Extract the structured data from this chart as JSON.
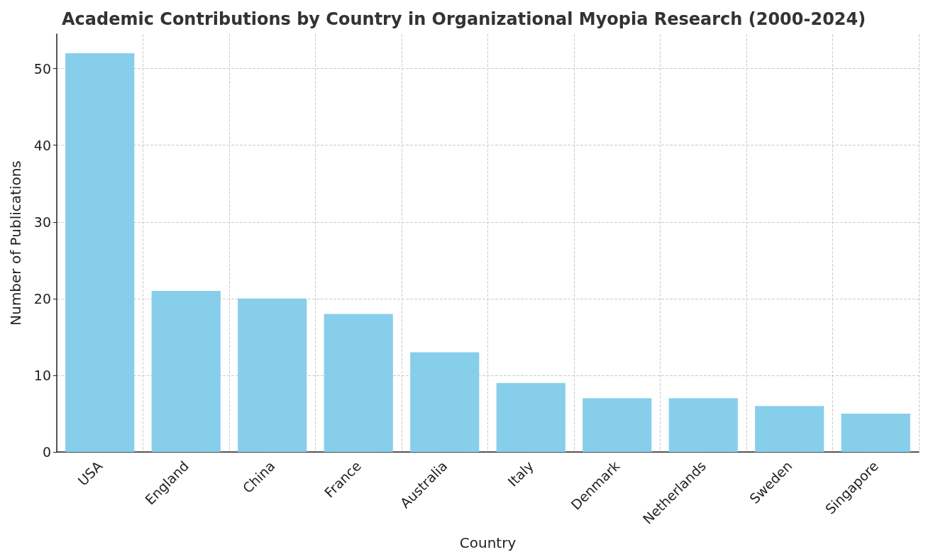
{
  "chart_data": {
    "type": "bar",
    "title": "Academic Contributions by Country in Organizational Myopia Research (2000-2024)",
    "xlabel": "Country",
    "ylabel": "Number of Publications",
    "categories": [
      "USA",
      "England",
      "China",
      "France",
      "Australia",
      "Italy",
      "Denmark",
      "Netherlands",
      "Sweden",
      "Singapore"
    ],
    "values": [
      52,
      21,
      20,
      18,
      13,
      9,
      7,
      7,
      6,
      5
    ],
    "color": "#87ceeb",
    "ylim": [
      0,
      54.5
    ],
    "yticks": [
      0,
      10,
      20,
      30,
      40,
      50
    ],
    "grid": true
  }
}
